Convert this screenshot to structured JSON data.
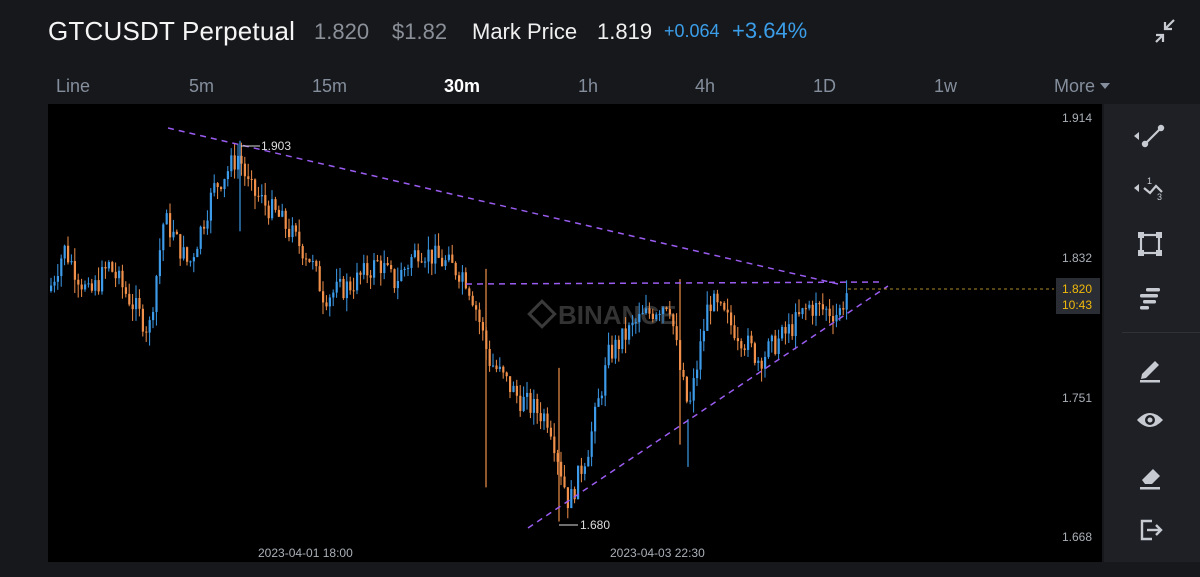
{
  "header": {
    "symbol": "GTCUSDT Perpetual",
    "last_price": "1.820",
    "usd_price": "$1.82",
    "mark_label": "Mark Price",
    "mark_price": "1.819",
    "change": "+0.064",
    "change_pct": "+3.64%",
    "accent_color": "#3b9ee8"
  },
  "tabs": [
    {
      "label": "Line",
      "active": false
    },
    {
      "label": "5m",
      "active": false
    },
    {
      "label": "15m",
      "active": false
    },
    {
      "label": "30m",
      "active": true
    },
    {
      "label": "1h",
      "active": false
    },
    {
      "label": "4h",
      "active": false
    },
    {
      "label": "1D",
      "active": false
    },
    {
      "label": "1w",
      "active": false
    },
    {
      "label": "More",
      "active": false
    }
  ],
  "chart": {
    "y_ticks": [
      "1.914",
      "1.832",
      "1.751",
      "1.668"
    ],
    "x_ticks": [
      "2023-04-01 18:00",
      "2023-04-03 22:30"
    ],
    "current_price": "1.820",
    "countdown": "10:43",
    "high_label": "1.903",
    "low_label": "1.680",
    "watermark": "BINANCE",
    "up_color": "#3d9be9",
    "down_color": "#f0904a",
    "line_color": "#9a5cf0",
    "price_tag_color": "#f0b90b"
  },
  "chart_data": {
    "type": "candlestick",
    "interval": "30m",
    "yaxis_ticks": [
      1.914,
      1.832,
      1.751,
      1.668
    ],
    "xaxis_ticks": [
      "2023-04-01 18:00",
      "2023-04-03 22:30"
    ],
    "visible_high": 1.903,
    "visible_low": 1.68,
    "current_price": 1.82,
    "annotations": [
      "descending trendline from top-left to apex",
      "horizontal resistance near 1.820",
      "ascending trendline from low 1.680 to apex"
    ]
  },
  "toolbar": {
    "icons": [
      "trendline-icon",
      "fibonacci-icon",
      "rectangle-icon",
      "indicator-icon",
      "draw-icon",
      "visibility-icon",
      "eraser-icon",
      "exit-icon"
    ]
  }
}
